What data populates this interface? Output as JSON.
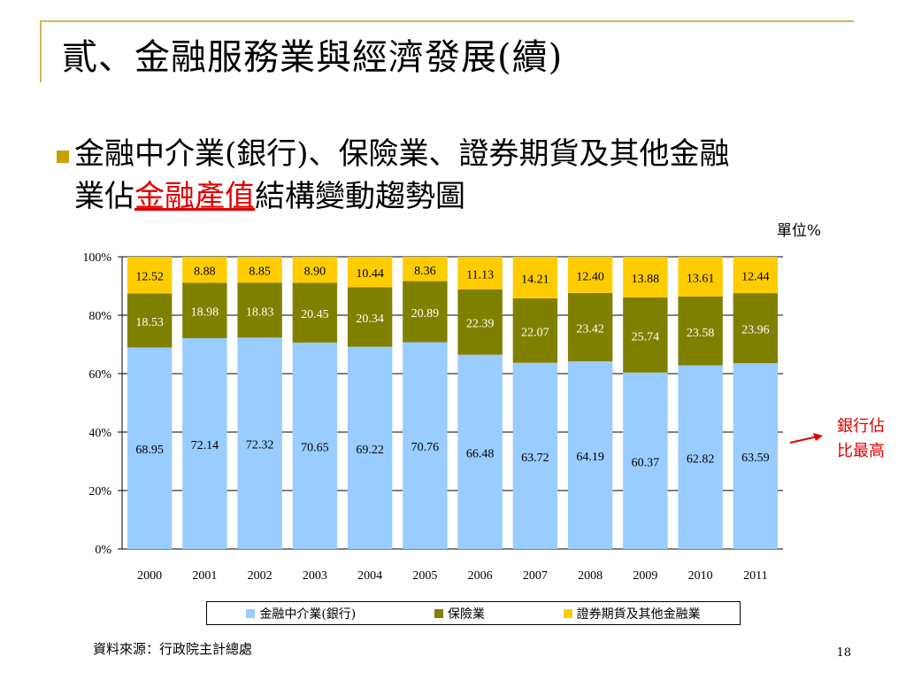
{
  "title": "貳、金融服務業與經濟發展(續)",
  "bullet": {
    "line1": "金融中介業(銀行)、保險業、證券期貨及其他金融",
    "line2_prefix": "業佔",
    "line2_highlight": "金融產值",
    "line2_suffix": "結構變動趨勢圖"
  },
  "unit_label": "單位%",
  "callout": {
    "line1": "銀行佔",
    "line2": "比最高"
  },
  "source": "資料來源：行政院主計總處",
  "page_number": "18",
  "colors": {
    "bank": "#99ccff",
    "insurance": "#808000",
    "securities": "#ffcc00",
    "accent_red": "#e00000",
    "frame": "#d4b45a"
  },
  "chart_data": {
    "type": "bar",
    "stacked": "percent",
    "categories": [
      "2000",
      "2001",
      "2002",
      "2003",
      "2004",
      "2005",
      "2006",
      "2007",
      "2008",
      "2009",
      "2010",
      "2011"
    ],
    "series": [
      {
        "name": "金融中介業(銀行)",
        "color": "#99ccff",
        "values": [
          68.95,
          72.14,
          72.32,
          70.65,
          69.22,
          70.76,
          66.48,
          63.72,
          64.19,
          60.37,
          62.82,
          63.59
        ]
      },
      {
        "name": "保險業",
        "color": "#808000",
        "values": [
          18.53,
          18.98,
          18.83,
          20.45,
          20.34,
          20.89,
          22.39,
          22.07,
          23.42,
          25.74,
          23.58,
          23.96
        ]
      },
      {
        "name": "證券期貨及其他金融業",
        "color": "#ffcc00",
        "values": [
          12.52,
          8.88,
          8.85,
          8.9,
          10.44,
          8.36,
          11.13,
          14.21,
          12.4,
          13.88,
          13.61,
          12.44
        ]
      }
    ],
    "y_ticks": [
      "0%",
      "20%",
      "40%",
      "60%",
      "80%",
      "100%"
    ],
    "ylim": [
      0,
      100
    ],
    "grid": true,
    "legend": "bottom"
  }
}
